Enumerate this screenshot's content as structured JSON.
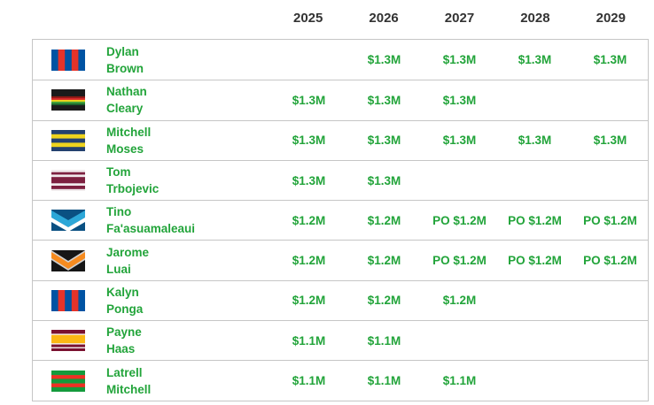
{
  "header": {
    "years": [
      "2025",
      "2026",
      "2027",
      "2028",
      "2029"
    ]
  },
  "colors": {
    "accent_green": "#22a43a",
    "header_text": "#333333",
    "border": "#c6c6c6"
  },
  "flags": {
    "newcastle-knights": {
      "type": "vstripes",
      "colors": [
        "#0053a3",
        "#e63329",
        "#0053a3",
        "#e63329",
        "#0053a3"
      ]
    },
    "penrith-panthers": {
      "type": "hstripes",
      "stripes": [
        [
          "#1b1b1b",
          4.4
        ],
        [
          "#8f1a14",
          1.1
        ],
        [
          "#d8262b",
          1.1
        ],
        [
          "#f2d41d",
          1.1
        ],
        [
          "#44a63a",
          1.1
        ],
        [
          "#1d6a2f",
          1.1
        ],
        [
          "#1b1b1b",
          3.4
        ]
      ]
    },
    "parramatta-eels": {
      "type": "hstripes",
      "stripes": [
        [
          "#24416f",
          1
        ],
        [
          "#eed31e",
          1
        ],
        [
          "#24416f",
          1
        ],
        [
          "#eed31e",
          1
        ],
        [
          "#24416f",
          1
        ]
      ]
    },
    "manly-sea-eagles": {
      "type": "hstripes",
      "stripes": [
        [
          "#f0eaec",
          1
        ],
        [
          "#7d2040",
          1
        ],
        [
          "#f0eaec",
          1
        ],
        [
          "#7d2040",
          2.6
        ],
        [
          "#f0eaec",
          1
        ],
        [
          "#7d2040",
          1.4
        ],
        [
          "#f0eaec",
          0.8
        ]
      ]
    },
    "gold-coast-titans": {
      "type": "chevron",
      "bg": "#0a5082",
      "bands": [
        {
          "y": 1,
          "t": 8,
          "dip": 11,
          "color": "#2ca7d8"
        },
        {
          "y": 9,
          "t": 5,
          "dip": 11,
          "color": "#ffffff"
        }
      ]
    },
    "wests-tigers": {
      "type": "chevron",
      "bg": "#161616",
      "bands": [
        {
          "y": 0,
          "t": 11,
          "dip": 12,
          "color": "#d0d0d0"
        },
        {
          "y": 2,
          "t": 7,
          "dip": 12,
          "color": "#f68b1f"
        }
      ]
    },
    "brisbane-broncos": {
      "type": "hstripes",
      "stripes": [
        [
          "#7a1130",
          1.6
        ],
        [
          "#f5f0f0",
          0.5
        ],
        [
          "#fcb714",
          3.4
        ],
        [
          "#f5f0f0",
          0.5
        ],
        [
          "#7a1130",
          1.1
        ],
        [
          "#f5f0f0",
          0.5
        ],
        [
          "#7a1130",
          1.1
        ]
      ]
    },
    "south-sydney-rabbitohs": {
      "type": "hstripes",
      "stripes": [
        [
          "#149a3c",
          1.2
        ],
        [
          "#ee3024",
          1
        ],
        [
          "#149a3c",
          1.2
        ],
        [
          "#ee3024",
          1
        ],
        [
          "#149a3c",
          1.2
        ]
      ]
    }
  },
  "players": [
    {
      "first": "Dylan",
      "last": "Brown",
      "flag": "newcastle-knights",
      "values": [
        "",
        "$1.3M",
        "$1.3M",
        "$1.3M",
        "$1.3M"
      ]
    },
    {
      "first": "Nathan",
      "last": "Cleary",
      "flag": "penrith-panthers",
      "values": [
        "$1.3M",
        "$1.3M",
        "$1.3M",
        "",
        ""
      ]
    },
    {
      "first": "Mitchell",
      "last": "Moses",
      "flag": "parramatta-eels",
      "values": [
        "$1.3M",
        "$1.3M",
        "$1.3M",
        "$1.3M",
        "$1.3M"
      ]
    },
    {
      "first": "Tom",
      "last": "Trbojevic",
      "flag": "manly-sea-eagles",
      "values": [
        "$1.3M",
        "$1.3M",
        "",
        "",
        ""
      ]
    },
    {
      "first": "Tino",
      "last": "Fa'asuamaleaui",
      "flag": "gold-coast-titans",
      "values": [
        "$1.2M",
        "$1.2M",
        "PO $1.2M",
        "PO $1.2M",
        "PO $1.2M"
      ]
    },
    {
      "first": "Jarome",
      "last": "Luai",
      "flag": "wests-tigers",
      "values": [
        "$1.2M",
        "$1.2M",
        "PO $1.2M",
        "PO $1.2M",
        "PO $1.2M"
      ]
    },
    {
      "first": "Kalyn",
      "last": "Ponga",
      "flag": "newcastle-knights",
      "values": [
        "$1.2M",
        "$1.2M",
        "$1.2M",
        "",
        ""
      ]
    },
    {
      "first": "Payne",
      "last": "Haas",
      "flag": "brisbane-broncos",
      "values": [
        "$1.1M",
        "$1.1M",
        "",
        "",
        ""
      ]
    },
    {
      "first": "Latrell",
      "last": "Mitchell",
      "flag": "south-sydney-rabbitohs",
      "values": [
        "$1.1M",
        "$1.1M",
        "$1.1M",
        "",
        ""
      ]
    }
  ]
}
